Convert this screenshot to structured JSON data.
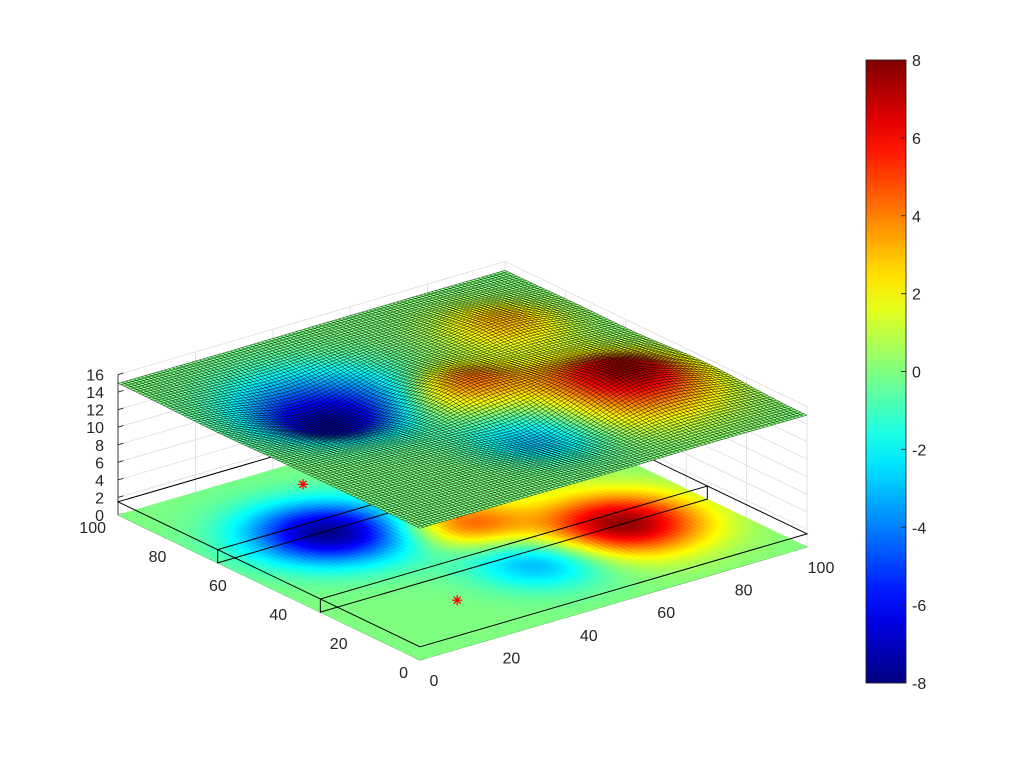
{
  "chart_data": {
    "type": "surface3d",
    "title": "",
    "xlabel": "",
    "ylabel": "",
    "zlabel": "",
    "xlim": [
      0,
      100
    ],
    "ylim": [
      0,
      100
    ],
    "zlim": [
      0,
      16
    ],
    "x_ticks": [
      "0",
      "20",
      "40",
      "60",
      "80",
      "100"
    ],
    "y_ticks": [
      "0",
      "20",
      "40",
      "60",
      "80",
      "100"
    ],
    "z_ticks": [
      "0",
      "2",
      "4",
      "6",
      "8",
      "10",
      "12",
      "14",
      "16"
    ],
    "colorbar": {
      "min": -8,
      "max": 8,
      "ticks": [
        "-8",
        "-6",
        "-4",
        "-2",
        "0",
        "2",
        "4",
        "6",
        "8"
      ],
      "colormap": "jet"
    },
    "surface_offset_z": 15,
    "mesh_resolution": 100,
    "grid": true,
    "gaussian_bumps": [
      {
        "x": 78,
        "y": 33,
        "amplitude": 7.8,
        "width": 12
      },
      {
        "x": 28,
        "y": 66,
        "amplitude": -7.8,
        "width": 12
      },
      {
        "x": 53,
        "y": 53,
        "amplitude": 4.5,
        "width": 9
      },
      {
        "x": 52,
        "y": 27,
        "amplitude": -3.5,
        "width": 10
      },
      {
        "x": 80,
        "y": 75,
        "amplitude": 3.2,
        "width": 9
      }
    ],
    "markers": [
      {
        "x": 26,
        "y": 21,
        "symbol": "*",
        "color": "#ff0000"
      },
      {
        "x": 55,
        "y": 58,
        "symbol": "*",
        "color": "#ff0000"
      },
      {
        "x": 40,
        "y": 90,
        "symbol": "*",
        "color": "#ff0000"
      }
    ],
    "vertical_planes_y": [
      33,
      67
    ]
  }
}
